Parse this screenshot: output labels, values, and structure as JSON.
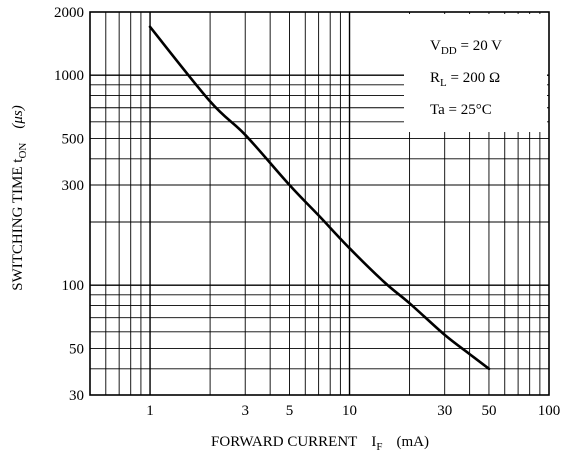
{
  "chart_data": {
    "type": "line",
    "title": "",
    "xlabel": {
      "main": "FORWARD CURRENT",
      "symbol": "I",
      "symbol_sub": "F",
      "unit": "(mA)"
    },
    "ylabel": {
      "main": "SWITCHING TIME t",
      "symbol_sub": "ON",
      "unit": "(μs)"
    },
    "x_scale": "log",
    "y_scale": "log",
    "xlim": [
      0.5,
      100
    ],
    "ylim": [
      30,
      2000
    ],
    "x_ticks": [
      1,
      3,
      5,
      10,
      30,
      50,
      100
    ],
    "x_tick_labels": [
      "1",
      "3",
      "5",
      "10",
      "30",
      "50",
      "100"
    ],
    "y_ticks": [
      30,
      50,
      100,
      300,
      500,
      1000,
      2000
    ],
    "y_tick_labels": [
      "30",
      "50",
      "100",
      "300",
      "500",
      "1000",
      "2000"
    ],
    "grid": true,
    "conditions": [
      {
        "main": "V",
        "sub": "DD",
        "rest": " = 20 V"
      },
      {
        "main": "R",
        "sub": "L",
        "rest": " = 200 Ω"
      },
      {
        "main": "Ta = 25°C",
        "sub": "",
        "rest": ""
      }
    ],
    "series": [
      {
        "x": [
          1,
          2,
          3,
          5,
          7,
          10,
          15,
          20,
          30,
          40,
          50
        ],
        "values": [
          1700,
          750,
          520,
          300,
          215,
          150,
          103,
          82,
          58,
          47,
          40
        ]
      }
    ]
  }
}
